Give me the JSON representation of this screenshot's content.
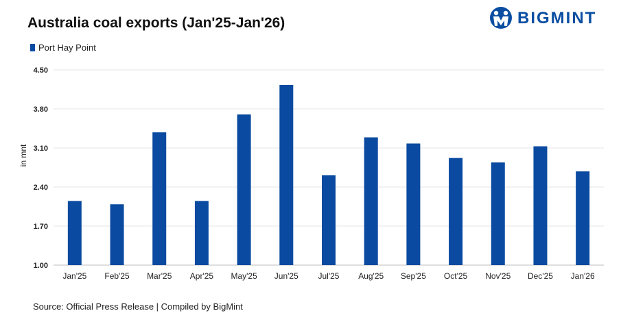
{
  "header": {
    "title": "Australia coal exports (Jan'25-Jan'26)",
    "logo_text": "BIGMINT",
    "logo_icon": "bigmint-figure-icon"
  },
  "footer": {
    "source": "Source:  Official Press Release  | Compiled  by BigMint"
  },
  "colors": {
    "bar": "#0a4aa0",
    "brand": "#0a4ea2",
    "grid": "#e6e6e6"
  },
  "chart_data": {
    "type": "bar",
    "title": "Australia coal exports (Jan'25-Jan'26)",
    "ylabel": "in mnt",
    "xlabel": "",
    "categories": [
      "Jan'25",
      "Feb'25",
      "Mar'25",
      "Apr'25",
      "May'25",
      "Jun'25",
      "Jul'25",
      "Aug'25",
      "Sep'25",
      "Oct'25",
      "Nov'25",
      "Dec'25",
      "Jan'26"
    ],
    "series": [
      {
        "name": "Port Hay Point",
        "values": [
          2.15,
          2.09,
          3.38,
          2.15,
          3.7,
          4.23,
          2.61,
          3.29,
          3.18,
          2.92,
          2.84,
          3.13,
          2.68
        ]
      }
    ],
    "yticks": [
      "1.00",
      "1.70",
      "2.40",
      "3.10",
      "3.80",
      "4.50"
    ],
    "ylim": [
      1.0,
      4.5
    ],
    "grid": true,
    "legend": "top-left"
  }
}
